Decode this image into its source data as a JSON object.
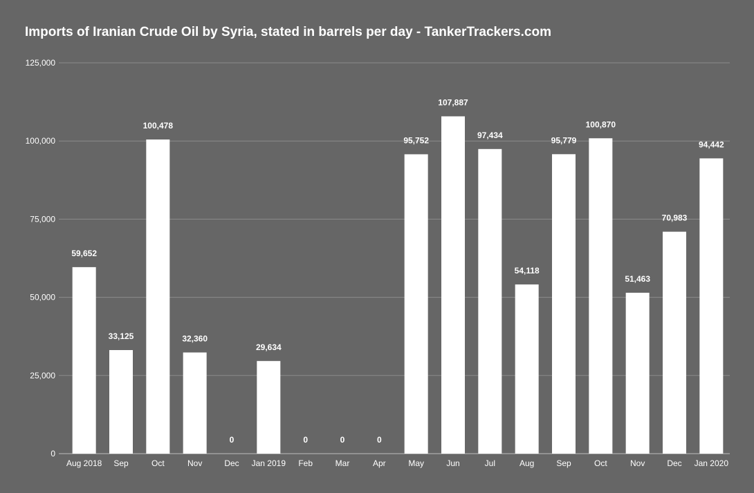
{
  "chart_data": {
    "type": "bar",
    "title": "Imports of Iranian Crude Oil by Syria, stated in barrels per day - TankerTrackers.com",
    "categories": [
      "Aug 2018",
      "Sep",
      "Oct",
      "Nov",
      "Dec",
      "Jan 2019",
      "Feb",
      "Mar",
      "Apr",
      "May",
      "Jun",
      "Jul",
      "Aug",
      "Sep",
      "Oct",
      "Nov",
      "Dec",
      "Jan 2020"
    ],
    "values": [
      59652,
      33125,
      100478,
      32360,
      0,
      29634,
      0,
      0,
      0,
      95752,
      107887,
      97434,
      54118,
      95779,
      100870,
      51463,
      70983,
      94442
    ],
    "data_labels": [
      "59,652",
      "33,125",
      "100,478",
      "32,360",
      "0",
      "29,634",
      "0",
      "0",
      "0",
      "95,752",
      "107,887",
      "97,434",
      "54,118",
      "95,779",
      "100,870",
      "51,463",
      "70,983",
      "94,442"
    ],
    "yticks": [
      0,
      25000,
      50000,
      75000,
      100000,
      125000
    ],
    "ytick_labels": [
      "0",
      "25,000",
      "50,000",
      "75,000",
      "100,000",
      "125,000"
    ],
    "ylim": [
      0,
      125000
    ],
    "xlabel": "",
    "ylabel": "",
    "grid": true,
    "legend": "none",
    "colors": {
      "background": "#666666",
      "bar": "#ffffff",
      "text": "#ffffff",
      "grid": "#8c8c8c"
    }
  }
}
